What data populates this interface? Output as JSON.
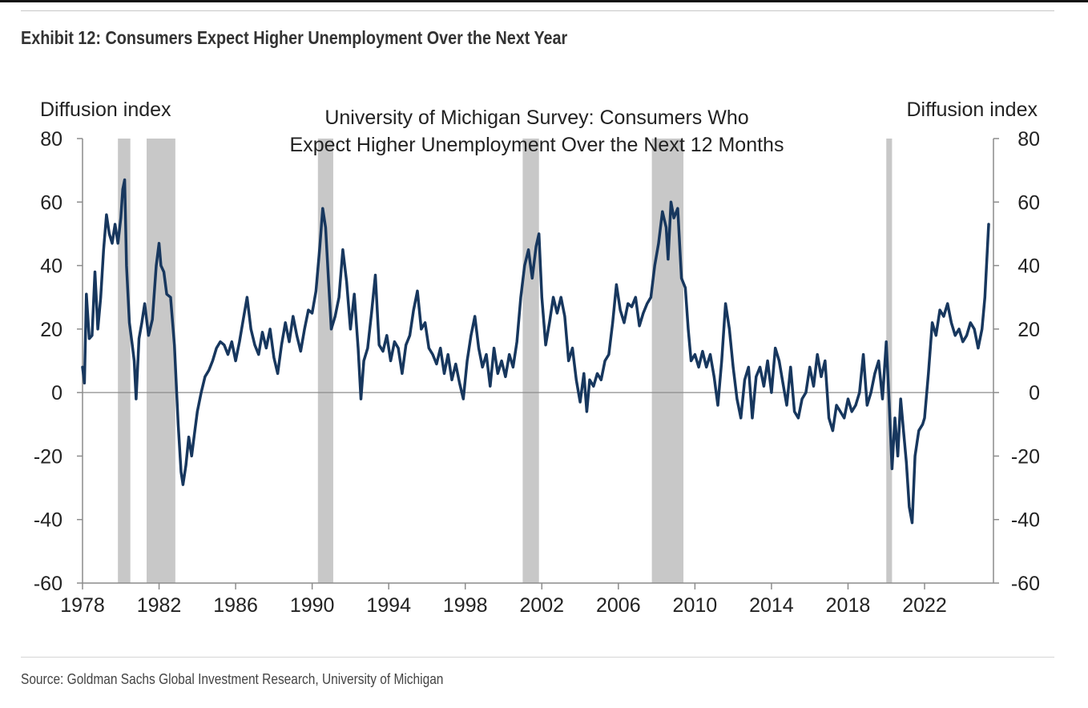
{
  "header": {
    "title": "Exhibit 12: Consumers Expect Higher Unemployment Over the Next Year"
  },
  "footer": {
    "source": "Source: Goldman Sachs Global Investment Research, University of Michigan"
  },
  "colors": {
    "series": "#17375e",
    "recession": "#c8c8c8",
    "axis": "#8c8c8c",
    "zero_line": "#8c8c8c"
  },
  "chart_data": {
    "type": "line",
    "title_lines": [
      "University of Michigan Survey: Consumers Who",
      "Expect Higher Unemployment Over the Next 12 Months"
    ],
    "ylabel_left": "Diffusion index",
    "ylabel_right": "Diffusion index",
    "ylim": [
      -60,
      80
    ],
    "y_ticks": [
      80,
      60,
      40,
      20,
      0,
      -20,
      -40,
      -60
    ],
    "xlim": [
      1978,
      2025.6
    ],
    "x_ticks": [
      1978,
      1982,
      1986,
      1990,
      1994,
      1998,
      2002,
      2006,
      2010,
      2014,
      2018,
      2022
    ],
    "grid": false,
    "zero_line": true,
    "recessions": [
      {
        "start": 1979.85,
        "end": 1980.5
      },
      {
        "start": 1981.35,
        "end": 1982.85
      },
      {
        "start": 1990.3,
        "end": 1991.1
      },
      {
        "start": 2001.0,
        "end": 2001.85
      },
      {
        "start": 2007.75,
        "end": 2009.4
      },
      {
        "start": 2020.0,
        "end": 2020.3
      }
    ],
    "series": [
      {
        "values": [
          [
            1978.0,
            8
          ],
          [
            1978.1,
            3
          ],
          [
            1978.2,
            31
          ],
          [
            1978.35,
            17
          ],
          [
            1978.5,
            18
          ],
          [
            1978.65,
            38
          ],
          [
            1978.8,
            20
          ],
          [
            1978.95,
            30
          ],
          [
            1979.1,
            45
          ],
          [
            1979.25,
            56
          ],
          [
            1979.4,
            50
          ],
          [
            1979.55,
            47
          ],
          [
            1979.7,
            53
          ],
          [
            1979.85,
            47
          ],
          [
            1980.0,
            55
          ],
          [
            1980.1,
            64
          ],
          [
            1980.2,
            67
          ],
          [
            1980.3,
            40
          ],
          [
            1980.45,
            22
          ],
          [
            1980.6,
            15
          ],
          [
            1980.7,
            10
          ],
          [
            1980.8,
            -2
          ],
          [
            1980.95,
            17
          ],
          [
            1981.1,
            22
          ],
          [
            1981.25,
            28
          ],
          [
            1981.45,
            18
          ],
          [
            1981.65,
            23
          ],
          [
            1981.85,
            40
          ],
          [
            1982.0,
            47
          ],
          [
            1982.1,
            40
          ],
          [
            1982.25,
            38
          ],
          [
            1982.4,
            31
          ],
          [
            1982.6,
            30
          ],
          [
            1982.8,
            15
          ],
          [
            1983.0,
            -10
          ],
          [
            1983.15,
            -25
          ],
          [
            1983.25,
            -29
          ],
          [
            1983.4,
            -23
          ],
          [
            1983.55,
            -14
          ],
          [
            1983.7,
            -20
          ],
          [
            1983.85,
            -13
          ],
          [
            1984.0,
            -6
          ],
          [
            1984.2,
            0
          ],
          [
            1984.4,
            5
          ],
          [
            1984.6,
            7
          ],
          [
            1984.8,
            10
          ],
          [
            1985.0,
            14
          ],
          [
            1985.2,
            16
          ],
          [
            1985.4,
            15
          ],
          [
            1985.6,
            12
          ],
          [
            1985.8,
            16
          ],
          [
            1986.0,
            10
          ],
          [
            1986.2,
            16
          ],
          [
            1986.4,
            23
          ],
          [
            1986.6,
            30
          ],
          [
            1986.8,
            20
          ],
          [
            1987.0,
            15
          ],
          [
            1987.2,
            12
          ],
          [
            1987.4,
            19
          ],
          [
            1987.6,
            14
          ],
          [
            1987.8,
            20
          ],
          [
            1988.0,
            11
          ],
          [
            1988.2,
            6
          ],
          [
            1988.4,
            15
          ],
          [
            1988.6,
            22
          ],
          [
            1988.8,
            16
          ],
          [
            1989.0,
            24
          ],
          [
            1989.2,
            18
          ],
          [
            1989.4,
            13
          ],
          [
            1989.6,
            20
          ],
          [
            1989.8,
            26
          ],
          [
            1990.0,
            25
          ],
          [
            1990.2,
            32
          ],
          [
            1990.4,
            46
          ],
          [
            1990.55,
            58
          ],
          [
            1990.7,
            52
          ],
          [
            1990.85,
            36
          ],
          [
            1991.0,
            20
          ],
          [
            1991.2,
            24
          ],
          [
            1991.4,
            30
          ],
          [
            1991.6,
            45
          ],
          [
            1991.8,
            35
          ],
          [
            1992.0,
            20
          ],
          [
            1992.2,
            31
          ],
          [
            1992.4,
            14
          ],
          [
            1992.55,
            -2
          ],
          [
            1992.7,
            10
          ],
          [
            1992.9,
            14
          ],
          [
            1993.1,
            25
          ],
          [
            1993.3,
            37
          ],
          [
            1993.5,
            15
          ],
          [
            1993.7,
            13
          ],
          [
            1993.9,
            18
          ],
          [
            1994.1,
            10
          ],
          [
            1994.3,
            16
          ],
          [
            1994.5,
            14
          ],
          [
            1994.7,
            6
          ],
          [
            1994.9,
            15
          ],
          [
            1995.1,
            18
          ],
          [
            1995.3,
            26
          ],
          [
            1995.5,
            32
          ],
          [
            1995.7,
            20
          ],
          [
            1995.9,
            22
          ],
          [
            1996.1,
            14
          ],
          [
            1996.3,
            12
          ],
          [
            1996.5,
            9
          ],
          [
            1996.7,
            14
          ],
          [
            1996.9,
            6
          ],
          [
            1997.1,
            12
          ],
          [
            1997.3,
            4
          ],
          [
            1997.5,
            9
          ],
          [
            1997.7,
            3
          ],
          [
            1997.9,
            -2
          ],
          [
            1998.1,
            10
          ],
          [
            1998.3,
            18
          ],
          [
            1998.5,
            24
          ],
          [
            1998.7,
            14
          ],
          [
            1998.9,
            8
          ],
          [
            1999.1,
            12
          ],
          [
            1999.3,
            2
          ],
          [
            1999.5,
            14
          ],
          [
            1999.7,
            6
          ],
          [
            1999.9,
            10
          ],
          [
            2000.1,
            5
          ],
          [
            2000.3,
            12
          ],
          [
            2000.5,
            8
          ],
          [
            2000.7,
            16
          ],
          [
            2000.9,
            30
          ],
          [
            2001.1,
            40
          ],
          [
            2001.3,
            45
          ],
          [
            2001.5,
            36
          ],
          [
            2001.7,
            46
          ],
          [
            2001.85,
            50
          ],
          [
            2002.0,
            30
          ],
          [
            2002.2,
            15
          ],
          [
            2002.4,
            22
          ],
          [
            2002.6,
            30
          ],
          [
            2002.8,
            25
          ],
          [
            2003.0,
            30
          ],
          [
            2003.2,
            24
          ],
          [
            2003.4,
            10
          ],
          [
            2003.6,
            14
          ],
          [
            2003.8,
            4
          ],
          [
            2004.0,
            -3
          ],
          [
            2004.2,
            6
          ],
          [
            2004.35,
            -6
          ],
          [
            2004.5,
            4
          ],
          [
            2004.7,
            2
          ],
          [
            2004.9,
            6
          ],
          [
            2005.1,
            4
          ],
          [
            2005.3,
            10
          ],
          [
            2005.5,
            12
          ],
          [
            2005.7,
            22
          ],
          [
            2005.9,
            34
          ],
          [
            2006.1,
            26
          ],
          [
            2006.3,
            22
          ],
          [
            2006.5,
            28
          ],
          [
            2006.7,
            27
          ],
          [
            2006.9,
            30
          ],
          [
            2007.1,
            21
          ],
          [
            2007.3,
            25
          ],
          [
            2007.5,
            28
          ],
          [
            2007.7,
            30
          ],
          [
            2007.9,
            40
          ],
          [
            2008.1,
            47
          ],
          [
            2008.3,
            57
          ],
          [
            2008.5,
            52
          ],
          [
            2008.6,
            42
          ],
          [
            2008.75,
            60
          ],
          [
            2008.9,
            55
          ],
          [
            2009.1,
            58
          ],
          [
            2009.3,
            36
          ],
          [
            2009.5,
            33
          ],
          [
            2009.65,
            20
          ],
          [
            2009.8,
            10
          ],
          [
            2010.0,
            12
          ],
          [
            2010.2,
            8
          ],
          [
            2010.4,
            13
          ],
          [
            2010.6,
            8
          ],
          [
            2010.8,
            12
          ],
          [
            2011.0,
            5
          ],
          [
            2011.2,
            -4
          ],
          [
            2011.4,
            10
          ],
          [
            2011.6,
            28
          ],
          [
            2011.8,
            20
          ],
          [
            2012.0,
            8
          ],
          [
            2012.2,
            -2
          ],
          [
            2012.4,
            -8
          ],
          [
            2012.6,
            4
          ],
          [
            2012.8,
            8
          ],
          [
            2013.0,
            -8
          ],
          [
            2013.2,
            5
          ],
          [
            2013.4,
            8
          ],
          [
            2013.6,
            2
          ],
          [
            2013.8,
            10
          ],
          [
            2014.0,
            0
          ],
          [
            2014.2,
            14
          ],
          [
            2014.4,
            10
          ],
          [
            2014.6,
            3
          ],
          [
            2014.8,
            -4
          ],
          [
            2015.0,
            8
          ],
          [
            2015.2,
            -6
          ],
          [
            2015.4,
            -8
          ],
          [
            2015.6,
            -2
          ],
          [
            2015.8,
            0
          ],
          [
            2016.0,
            8
          ],
          [
            2016.2,
            2
          ],
          [
            2016.4,
            12
          ],
          [
            2016.6,
            5
          ],
          [
            2016.8,
            10
          ],
          [
            2017.0,
            -8
          ],
          [
            2017.2,
            -12
          ],
          [
            2017.4,
            -4
          ],
          [
            2017.6,
            -6
          ],
          [
            2017.8,
            -8
          ],
          [
            2018.0,
            -2
          ],
          [
            2018.2,
            -6
          ],
          [
            2018.4,
            -4
          ],
          [
            2018.6,
            0
          ],
          [
            2018.8,
            12
          ],
          [
            2019.0,
            -4
          ],
          [
            2019.2,
            0
          ],
          [
            2019.4,
            6
          ],
          [
            2019.6,
            10
          ],
          [
            2019.8,
            -2
          ],
          [
            2020.0,
            16
          ],
          [
            2020.15,
            -3
          ],
          [
            2020.3,
            -24
          ],
          [
            2020.45,
            -8
          ],
          [
            2020.6,
            -20
          ],
          [
            2020.75,
            -2
          ],
          [
            2020.9,
            -12
          ],
          [
            2021.05,
            -22
          ],
          [
            2021.2,
            -36
          ],
          [
            2021.35,
            -41
          ],
          [
            2021.5,
            -20
          ],
          [
            2021.7,
            -12
          ],
          [
            2021.9,
            -10
          ],
          [
            2022.0,
            -8
          ],
          [
            2022.2,
            6
          ],
          [
            2022.4,
            22
          ],
          [
            2022.6,
            18
          ],
          [
            2022.8,
            26
          ],
          [
            2023.0,
            24
          ],
          [
            2023.2,
            28
          ],
          [
            2023.4,
            22
          ],
          [
            2023.6,
            18
          ],
          [
            2023.8,
            20
          ],
          [
            2024.0,
            16
          ],
          [
            2024.2,
            18
          ],
          [
            2024.4,
            22
          ],
          [
            2024.6,
            20
          ],
          [
            2024.8,
            14
          ],
          [
            2025.0,
            20
          ],
          [
            2025.15,
            30
          ],
          [
            2025.35,
            53
          ]
        ]
      }
    ]
  }
}
